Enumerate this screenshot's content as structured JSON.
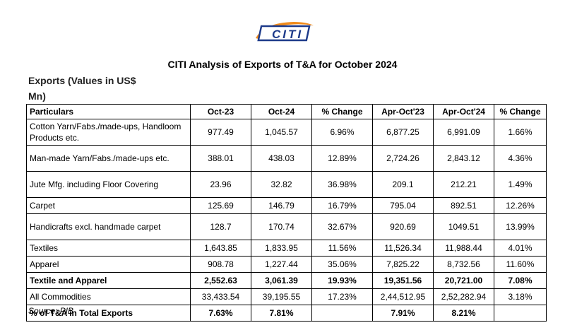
{
  "logo": {
    "text": "CITI",
    "color_blue": "#1d3a8a",
    "color_orange": "#f28c1b"
  },
  "title": "CITI Analysis of Exports of T&A for October 2024",
  "subtitle": "Exports (Values in US$ Mn)",
  "table": {
    "headers": [
      "Particulars",
      "Oct-23",
      "Oct-24",
      "% Change",
      "Apr-Oct'23",
      "Apr-Oct'24",
      "% Change"
    ],
    "rows": [
      [
        "Cotton Yarn/Fabs./made-ups, Handloom Products etc.",
        "977.49",
        "1,045.57",
        "6.96%",
        "6,877.25",
        "6,991.09",
        "1.66%"
      ],
      [
        "Man-made Yarn/Fabs./made-ups etc.",
        "388.01",
        "438.03",
        "12.89%",
        "2,724.26",
        "2,843.12",
        "4.36%"
      ],
      [
        "Jute Mfg. including Floor Covering",
        "23.96",
        "32.82",
        "36.98%",
        "209.1",
        "212.21",
        "1.49%"
      ],
      [
        "Carpet",
        "125.69",
        "146.79",
        "16.79%",
        "795.04",
        "892.51",
        "12.26%"
      ],
      [
        "Handicrafts excl. handmade carpet",
        "128.7",
        "170.74",
        "32.67%",
        "920.69",
        "1049.51",
        "13.99%"
      ],
      [
        "Textiles",
        "1,643.85",
        "1,833.95",
        "11.56%",
        "11,526.34",
        "11,988.44",
        "4.01%"
      ],
      [
        "Apparel",
        "908.78",
        "1,227.44",
        "35.06%",
        "7,825.22",
        "8,732.56",
        "11.60%"
      ],
      [
        "Textile and Apparel",
        "2,552.63",
        "3,061.39",
        "19.93%",
        "19,351.56",
        "20,721.00",
        "7.08%"
      ],
      [
        "All Commodities",
        "33,433.54",
        "39,195.55",
        "17.23%",
        "2,44,512.95",
        "2,52,282.94",
        "3.18%"
      ],
      [
        "% of T&A in Total Exports",
        "7.63%",
        "7.81%",
        "",
        "7.91%",
        "8.21%",
        ""
      ]
    ]
  },
  "source": "Source: PIB"
}
